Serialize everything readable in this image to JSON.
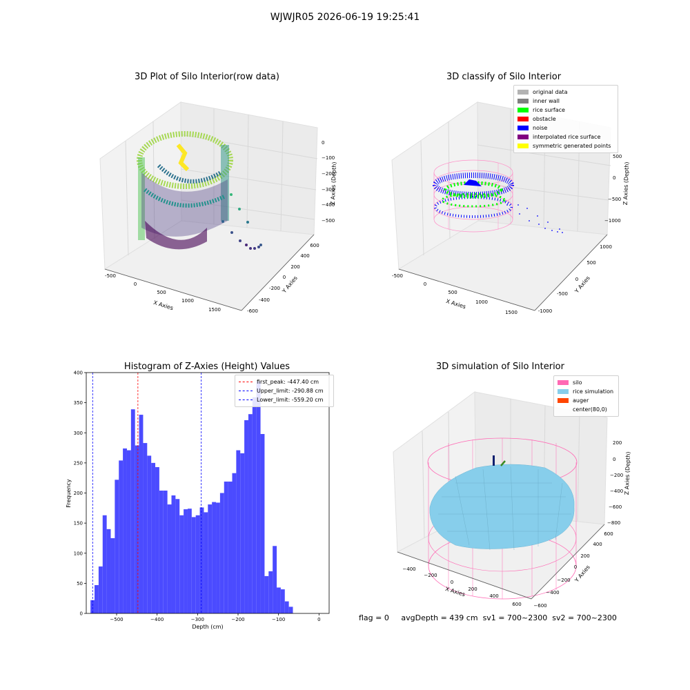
{
  "figure_title": "WJWJR05 2026-06-19 19:25:41",
  "footer": {
    "flag": "flag = 0",
    "avg_depth": "avgDepth = 439 cm",
    "sv1": "sv1 = 700~2300",
    "sv2": "sv2 = 700~2300"
  },
  "chart_data": [
    {
      "type": "scatter",
      "title": "3D Plot of Silo Interior(row data)",
      "xlabel": "X Axies",
      "ylabel": "Y Axies",
      "zlabel": "Z Axies (Depth)",
      "xticks": [
        "-500",
        "0",
        "500",
        "1000",
        "1500"
      ],
      "yticks": [
        "-600",
        "-400",
        "-200",
        "0",
        "200",
        "400",
        "600"
      ],
      "zticks": [
        "0",
        "−100",
        "−200",
        "−300",
        "−400",
        "−500"
      ],
      "colormap": "viridis"
    },
    {
      "type": "scatter",
      "title": "3D classify of Silo Interior",
      "xlabel": "X Axies",
      "ylabel": "Y Axies",
      "zlabel": "Z Axies (Depth)",
      "xticks": [
        "-500",
        "0",
        "500",
        "1000",
        "1500"
      ],
      "yticks": [
        "-1000",
        "-500",
        "0",
        "500",
        "1000"
      ],
      "zticks": [
        "500",
        "0",
        "−500",
        "−1000"
      ],
      "legend": [
        {
          "label": "original data",
          "color": "#b3b3b3"
        },
        {
          "label": "inner wall",
          "color": "#808080"
        },
        {
          "label": "rice surface",
          "color": "#00ff00"
        },
        {
          "label": "obstacle",
          "color": "#ff0000"
        },
        {
          "label": "noise",
          "color": "#0000ff"
        },
        {
          "label": "interpolated rice surface",
          "color": "#800080"
        },
        {
          "label": "symmetric generated points",
          "color": "#ffff00"
        }
      ]
    },
    {
      "type": "bar",
      "title": "Histogram of Z-Axies (Height) Values",
      "xlabel": "Depth (cm)",
      "ylabel": "Frequency",
      "xlim": [
        -575,
        25
      ],
      "ylim": [
        0,
        400
      ],
      "xticks": [
        -500,
        -400,
        -300,
        -200,
        -100,
        0
      ],
      "yticks": [
        0,
        50,
        100,
        150,
        200,
        250,
        300,
        350,
        400
      ],
      "bar_color": "#4b4bff",
      "bin_start": -564.5,
      "bin_width": 10,
      "values": [
        22,
        47,
        78,
        163,
        140,
        125,
        222,
        254,
        274,
        271,
        339,
        279,
        330,
        283,
        262,
        250,
        243,
        204,
        204,
        181,
        196,
        190,
        163,
        173,
        174,
        160,
        163,
        176,
        168,
        181,
        185,
        184,
        200,
        219,
        219,
        233,
        271,
        266,
        321,
        331,
        359,
        385,
        298,
        62,
        70,
        112,
        43,
        40,
        20,
        11
      ],
      "vlines": [
        {
          "label": "first_peak: -447.40 cm",
          "x": -447.4,
          "color": "#ff0000"
        },
        {
          "label": "Upper_limit: -290.88 cm",
          "x": -290.88,
          "color": "#0000ff"
        },
        {
          "label": "Lower_limit: -559.20 cm",
          "x": -559.2,
          "color": "#0000ff"
        }
      ],
      "grid": false,
      "legend_position": "top-right"
    },
    {
      "type": "surface",
      "title": "3D simulation of Silo Interior",
      "xlabel": "X Axies",
      "ylabel": "Y Axies",
      "zlabel": "Z Axies (Depth)",
      "xticks": [
        "−400",
        "−200",
        "0",
        "200",
        "400",
        "600"
      ],
      "yticks": [
        "−600",
        "−400",
        "−200",
        "0",
        "200",
        "400",
        "600"
      ],
      "zticks": [
        "200",
        "0",
        "−200",
        "−400",
        "−600",
        "−800"
      ],
      "legend": [
        {
          "label": "silo",
          "color": "#ff69b4"
        },
        {
          "label": "rice simulation",
          "color": "#87ceeb"
        },
        {
          "label": "auger",
          "color": "#ff4500"
        },
        {
          "label": "center(80,0)",
          "color": ""
        }
      ]
    }
  ]
}
